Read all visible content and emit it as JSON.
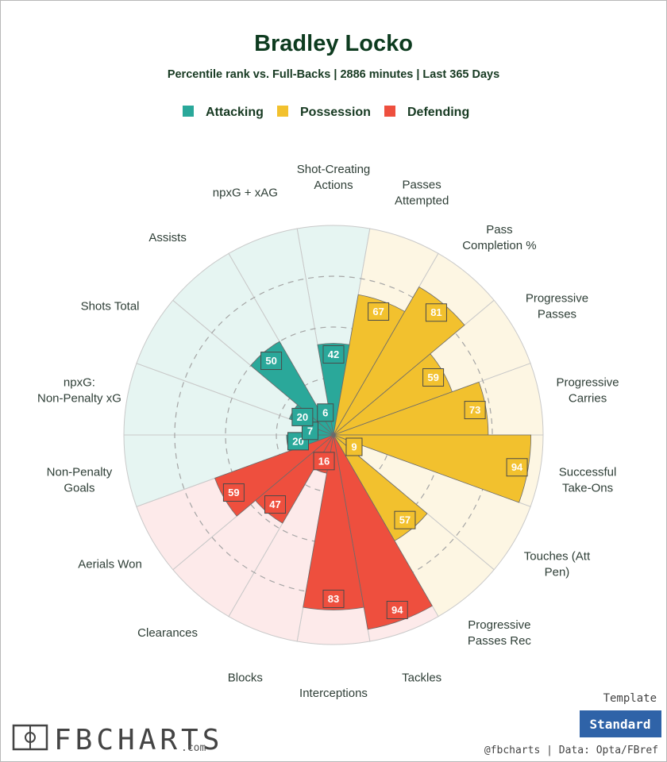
{
  "chart_data": {
    "type": "polar-bar",
    "title": "Bradley Locko",
    "subtitle": "Percentile rank vs. Full-Backs | 2886 minutes | Last 365 Days",
    "range": [
      0,
      100
    ],
    "legend": [
      {
        "name": "Attacking",
        "color": "#2aa89a"
      },
      {
        "name": "Possession",
        "color": "#f2c12e"
      },
      {
        "name": "Defending",
        "color": "#ee4f3e"
      }
    ],
    "categories": [
      {
        "label": "Shot-Creating Actions",
        "value": 42,
        "group": "Attacking"
      },
      {
        "label": "Passes Attempted",
        "value": 67,
        "group": "Possession"
      },
      {
        "label": "Pass Completion %",
        "value": 81,
        "group": "Possession"
      },
      {
        "label": "Progressive Passes",
        "value": 59,
        "group": "Possession"
      },
      {
        "label": "Progressive Carries",
        "value": 73,
        "group": "Possession"
      },
      {
        "label": "Successful Take-Ons",
        "value": 94,
        "group": "Possession"
      },
      {
        "label": "Touches (Att Pen)",
        "value": 9,
        "group": "Possession"
      },
      {
        "label": "Progressive Passes Rec",
        "value": 57,
        "group": "Possession"
      },
      {
        "label": "Tackles",
        "value": 94,
        "group": "Defending"
      },
      {
        "label": "Interceptions",
        "value": 83,
        "group": "Defending"
      },
      {
        "label": "Blocks",
        "value": 16,
        "group": "Defending"
      },
      {
        "label": "Clearances",
        "value": 47,
        "group": "Defending"
      },
      {
        "label": "Aerials Won",
        "value": 59,
        "group": "Defending"
      },
      {
        "label": "Non-Penalty Goals",
        "value": 20,
        "group": "Attacking"
      },
      {
        "label": "npxG: Non-Penalty xG",
        "value": 7,
        "group": "Attacking"
      },
      {
        "label": "Shots Total",
        "value": 20,
        "group": "Attacking"
      },
      {
        "label": "Assists",
        "value": 50,
        "group": "Attacking"
      },
      {
        "label": "npxG + xAG",
        "value": 6,
        "group": "Attacking"
      }
    ]
  },
  "colors": {
    "Attacking": "#2aa89a",
    "Possession": "#f2c12e",
    "Defending": "#ee4f3e",
    "bg_Attacking": "#e6f5f2",
    "bg_Possession": "#fdf6e3",
    "bg_Defending": "#fdeaea",
    "title": "#0d3b1f",
    "button": "#2f63a8"
  },
  "footer": {
    "brand": "FBCHARTS",
    "brand_suffix": ".com",
    "credit": "@fbcharts | Data: Opta/FBref",
    "template_label": "Template",
    "template_button": "Standard",
    "logo_icon": "pitch-icon"
  }
}
